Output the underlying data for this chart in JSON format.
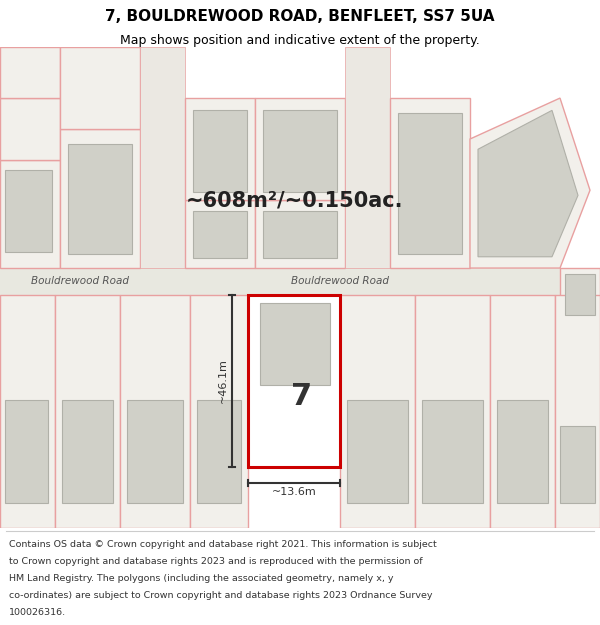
{
  "title_line1": "7, BOULDREWOOD ROAD, BENFLEET, SS7 5UA",
  "title_line2": "Map shows position and indicative extent of the property.",
  "area_text": "~608m²/~0.150ac.",
  "road_label_left": "Bouldrewood Road",
  "road_label_right": "Bouldrewood Road",
  "plot_number": "7",
  "dim_vertical": "~46.1m",
  "dim_horizontal": "~13.6m",
  "footer_lines": [
    "Contains OS data © Crown copyright and database right 2021. This information is subject",
    "to Crown copyright and database rights 2023 and is reproduced with the permission of",
    "HM Land Registry. The polygons (including the associated geometry, namely x, y",
    "co-ordinates) are subject to Crown copyright and database rights 2023 Ordnance Survey",
    "100026316."
  ],
  "map_bg": "#f0ede8",
  "plot_fill": "#ffffff",
  "plot_border": "#cc0000",
  "line_color": "#e8a0a0",
  "dim_line_color": "#333333",
  "building_fill": "#d0d0c8",
  "building_edge": "#b0b0a8",
  "prop_fill": "#f2f0eb",
  "road_fill": "#e8e8e0",
  "road_text_color": "#555555"
}
